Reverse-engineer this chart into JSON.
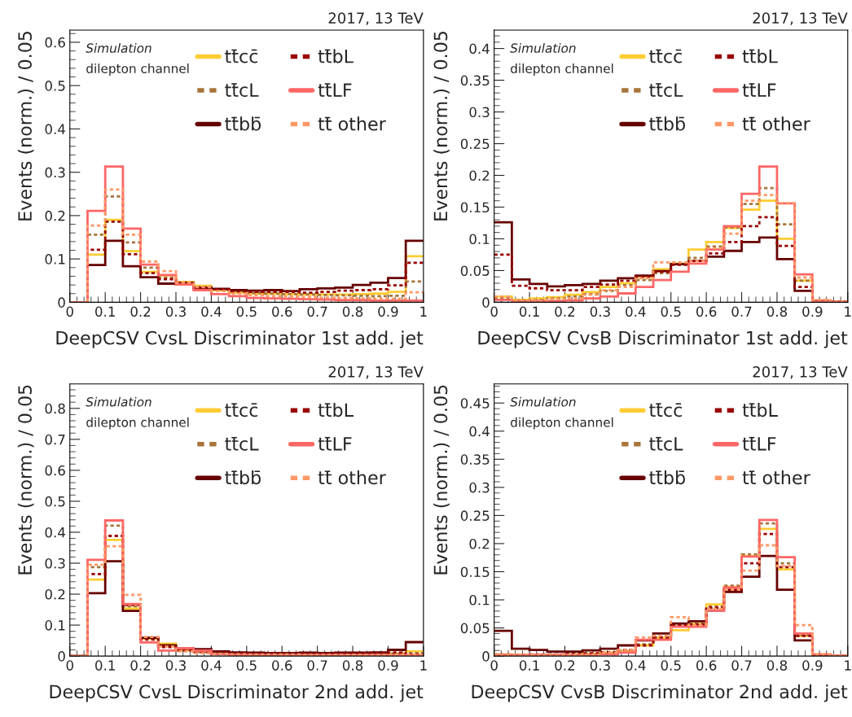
{
  "chart_data": [
    {
      "type": "histogram",
      "title": "2017, 13 TeV",
      "xlabel": "DeepCSV CvsL Discriminator 1st add. jet",
      "ylabel": "Events (norm.) / 0.05",
      "annotations": [
        "Simulation",
        "dilepton channel"
      ],
      "bins": [
        0,
        0.05,
        0.1,
        0.15,
        0.2,
        0.25,
        0.3,
        0.35,
        0.4,
        0.45,
        0.5,
        0.55,
        0.6,
        0.65,
        0.7,
        0.75,
        0.8,
        0.85,
        0.9,
        0.95,
        1
      ],
      "xlim": [
        0,
        1
      ],
      "xticks": [
        0,
        0.1,
        0.2,
        0.3,
        0.4,
        0.5,
        0.6,
        0.7,
        0.8,
        0.9,
        1
      ],
      "ylim": [
        0,
        0.628
      ],
      "yticks": [
        0,
        0.1,
        0.2,
        0.3,
        0.4,
        0.5,
        0.6
      ],
      "legend": "top right",
      "grid": false,
      "series": [
        {
          "name": "tt̄cc̄",
          "color": "#ffcc33",
          "line_style": "solid",
          "values": [
            0,
            0.11,
            0.19,
            0.118,
            0.07,
            0.062,
            0.047,
            0.038,
            0.028,
            0.022,
            0.02,
            0.02,
            0.019,
            0.018,
            0.018,
            0.018,
            0.019,
            0.02,
            0.024,
            0.106
          ]
        },
        {
          "name": "tt̄cL",
          "color": "#a8743a",
          "line_style": "dotted",
          "values": [
            0,
            0.156,
            0.244,
            0.138,
            0.08,
            0.057,
            0.046,
            0.035,
            0.03,
            0.025,
            0.021,
            0.02,
            0.019,
            0.018,
            0.017,
            0.016,
            0.015,
            0.014,
            0.015,
            0.048
          ]
        },
        {
          "name": "tt̄bb̄",
          "color": "#660000",
          "line_style": "solid",
          "values": [
            0,
            0.086,
            0.142,
            0.083,
            0.058,
            0.043,
            0.041,
            0.033,
            0.031,
            0.028,
            0.027,
            0.028,
            0.026,
            0.03,
            0.032,
            0.034,
            0.04,
            0.045,
            0.056,
            0.142
          ]
        },
        {
          "name": "tt̄bL",
          "color": "#990000",
          "line_style": "dotted",
          "values": [
            0,
            0.121,
            0.186,
            0.111,
            0.067,
            0.053,
            0.044,
            0.033,
            0.03,
            0.025,
            0.024,
            0.024,
            0.024,
            0.022,
            0.024,
            0.027,
            0.028,
            0.03,
            0.039,
            0.091
          ]
        },
        {
          "name": "tt̄LF",
          "color": "#ff6666",
          "line_style": "solid",
          "values": [
            0,
            0.211,
            0.313,
            0.17,
            0.087,
            0.063,
            0.041,
            0.028,
            0.019,
            0.014,
            0.01,
            0.009,
            0.008,
            0.007,
            0.006,
            0.005,
            0.005,
            0.004,
            0.004,
            0.004
          ]
        },
        {
          "name": "tt̄ other",
          "color": "#ff9966",
          "line_style": "dotted",
          "values": [
            0,
            0.177,
            0.26,
            0.156,
            0.094,
            0.072,
            0.045,
            0.035,
            0.026,
            0.02,
            0.016,
            0.014,
            0.013,
            0.012,
            0.011,
            0.01,
            0.009,
            0.008,
            0.008,
            0.023
          ]
        }
      ]
    },
    {
      "type": "histogram",
      "title": "2017, 13 TeV",
      "xlabel": "DeepCSV CvsB Discriminator 1st add. jet",
      "ylabel": "Events (norm.) / 0.05",
      "annotations": [
        "Simulation",
        "dilepton channel"
      ],
      "bins": [
        0,
        0.05,
        0.1,
        0.15,
        0.2,
        0.25,
        0.3,
        0.35,
        0.4,
        0.45,
        0.5,
        0.55,
        0.6,
        0.65,
        0.7,
        0.75,
        0.8,
        0.85,
        0.9,
        0.95,
        1
      ],
      "xlim": [
        0,
        1
      ],
      "xticks": [
        0,
        0.1,
        0.2,
        0.3,
        0.4,
        0.5,
        0.6,
        0.7,
        0.8,
        0.9,
        1
      ],
      "ylim": [
        0,
        0.429
      ],
      "yticks": [
        0,
        0.05,
        0.1,
        0.15,
        0.2,
        0.25,
        0.3,
        0.35,
        0.4
      ],
      "legend": "top right",
      "grid": false,
      "series": [
        {
          "name": "tt̄cc̄",
          "color": "#ffcc33",
          "line_style": "solid",
          "values": [
            0.009,
            0.004,
            0.006,
            0.008,
            0.012,
            0.016,
            0.024,
            0.03,
            0.04,
            0.052,
            0.061,
            0.083,
            0.095,
            0.117,
            0.146,
            0.16,
            0.1,
            0.034,
            0.002,
            0.001
          ]
        },
        {
          "name": "tt̄cL",
          "color": "#a8743a",
          "line_style": "dotted",
          "values": [
            0.007,
            0.003,
            0.004,
            0.006,
            0.009,
            0.013,
            0.018,
            0.027,
            0.035,
            0.046,
            0.06,
            0.07,
            0.088,
            0.118,
            0.155,
            0.18,
            0.123,
            0.034,
            0.002,
            0.001
          ]
        },
        {
          "name": "tt̄bb̄",
          "color": "#660000",
          "line_style": "solid",
          "values": [
            0.126,
            0.036,
            0.029,
            0.025,
            0.027,
            0.029,
            0.034,
            0.038,
            0.042,
            0.049,
            0.06,
            0.065,
            0.072,
            0.081,
            0.095,
            0.102,
            0.068,
            0.018,
            0.002,
            0.001
          ]
        },
        {
          "name": "tt̄bL",
          "color": "#990000",
          "line_style": "dotted",
          "values": [
            0.075,
            0.026,
            0.022,
            0.019,
            0.019,
            0.024,
            0.028,
            0.034,
            0.04,
            0.048,
            0.059,
            0.065,
            0.077,
            0.095,
            0.12,
            0.134,
            0.089,
            0.024,
            0.002,
            0.001
          ]
        },
        {
          "name": "tt̄LF",
          "color": "#ff6666",
          "line_style": "solid",
          "values": [
            0.004,
            0.001,
            0.002,
            0.002,
            0.003,
            0.006,
            0.009,
            0.014,
            0.024,
            0.035,
            0.048,
            0.061,
            0.083,
            0.12,
            0.171,
            0.214,
            0.156,
            0.044,
            0.002,
            0.001
          ]
        },
        {
          "name": "tt̄ other",
          "color": "#ff9966",
          "line_style": "dotted",
          "values": [
            0.009,
            0.003,
            0.003,
            0.005,
            0.006,
            0.012,
            0.019,
            0.024,
            0.038,
            0.063,
            0.063,
            0.065,
            0.085,
            0.108,
            0.16,
            0.169,
            0.156,
            0.039,
            0.004,
            0.001
          ]
        }
      ]
    },
    {
      "type": "histogram",
      "title": "2017, 13 TeV",
      "xlabel": "DeepCSV CvsL Discriminator 2nd add. jet",
      "ylabel": "Events (norm.) / 0.05",
      "annotations": [
        "Simulation",
        "dilepton channel"
      ],
      "bins": [
        0,
        0.05,
        0.1,
        0.15,
        0.2,
        0.25,
        0.3,
        0.35,
        0.4,
        0.45,
        0.5,
        0.55,
        0.6,
        0.65,
        0.7,
        0.75,
        0.8,
        0.85,
        0.9,
        0.95,
        1
      ],
      "xlim": [
        0,
        1
      ],
      "xticks": [
        0,
        0.1,
        0.2,
        0.3,
        0.4,
        0.5,
        0.6,
        0.7,
        0.8,
        0.9,
        1
      ],
      "ylim": [
        0,
        0.879
      ],
      "yticks": [
        0,
        0.1,
        0.2,
        0.3,
        0.4,
        0.5,
        0.6,
        0.7,
        0.8
      ],
      "legend": "top right",
      "grid": false,
      "series": [
        {
          "name": "tt̄cc̄",
          "color": "#ffcc33",
          "line_style": "solid",
          "values": [
            0,
            0.247,
            0.375,
            0.154,
            0.056,
            0.04,
            0.019,
            0.015,
            0.011,
            0.009,
            0.008,
            0.007,
            0.007,
            0.007,
            0.007,
            0.007,
            0.007,
            0.007,
            0.008,
            0.015
          ]
        },
        {
          "name": "tt̄cL",
          "color": "#a8743a",
          "line_style": "dotted",
          "values": [
            0,
            0.287,
            0.421,
            0.161,
            0.057,
            0.033,
            0.02,
            0.013,
            0.011,
            0.009,
            0.008,
            0.008,
            0.007,
            0.007,
            0.007,
            0.007,
            0.007,
            0.007,
            0.008,
            0.01
          ]
        },
        {
          "name": "tt̄bb̄",
          "color": "#660000",
          "line_style": "solid",
          "values": [
            0,
            0.203,
            0.306,
            0.146,
            0.059,
            0.035,
            0.024,
            0.022,
            0.015,
            0.012,
            0.011,
            0.01,
            0.01,
            0.011,
            0.01,
            0.011,
            0.011,
            0.012,
            0.02,
            0.045
          ]
        },
        {
          "name": "tt̄bL",
          "color": "#990000",
          "line_style": "dotted",
          "values": [
            0,
            0.265,
            0.388,
            0.165,
            0.053,
            0.029,
            0.018,
            0.013,
            0.011,
            0.009,
            0.008,
            0.008,
            0.008,
            0.008,
            0.008,
            0.008,
            0.009,
            0.009,
            0.011,
            0.005
          ]
        },
        {
          "name": "tt̄LF",
          "color": "#ff6666",
          "line_style": "solid",
          "values": [
            0,
            0.311,
            0.438,
            0.168,
            0.044,
            0.018,
            0.025,
            0.018,
            0.006,
            0.004,
            0.003,
            0.003,
            0.003,
            0.003,
            0.003,
            0.003,
            0.003,
            0.003,
            0.003,
            0.003
          ]
        },
        {
          "name": "tt̄ other",
          "color": "#ff9966",
          "line_style": "dotted",
          "values": [
            0,
            0.295,
            0.355,
            0.198,
            0.062,
            0.031,
            0.015,
            0.009,
            0.007,
            0.006,
            0.005,
            0.005,
            0.005,
            0.004,
            0.004,
            0.004,
            0.004,
            0.004,
            0.004,
            0.004
          ]
        }
      ]
    },
    {
      "type": "histogram",
      "title": "2017, 13 TeV",
      "xlabel": "DeepCSV CvsB Discriminator 2nd add. jet",
      "ylabel": "Events (norm.) / 0.05",
      "annotations": [
        "Simulation",
        "dilepton channel"
      ],
      "bins": [
        0,
        0.05,
        0.1,
        0.15,
        0.2,
        0.25,
        0.3,
        0.35,
        0.4,
        0.45,
        0.5,
        0.55,
        0.6,
        0.65,
        0.7,
        0.75,
        0.8,
        0.85,
        0.9,
        0.95,
        1
      ],
      "xlim": [
        0,
        1
      ],
      "xticks": [
        0,
        0.1,
        0.2,
        0.3,
        0.4,
        0.5,
        0.6,
        0.7,
        0.8,
        0.9,
        1
      ],
      "ylim": [
        0,
        0.484
      ],
      "yticks": [
        0,
        0.05,
        0.1,
        0.15,
        0.2,
        0.25,
        0.3,
        0.35,
        0.4,
        0.45
      ],
      "legend": "top right",
      "grid": false,
      "series": [
        {
          "name": "tt̄cc̄",
          "color": "#ffcc33",
          "line_style": "solid",
          "values": [
            0.003,
            0.002,
            0.002,
            0.002,
            0.003,
            0.004,
            0.006,
            0.008,
            0.019,
            0.032,
            0.046,
            0.057,
            0.092,
            0.123,
            0.178,
            0.226,
            0.154,
            0.036,
            0.003,
            0.001
          ]
        },
        {
          "name": "tt̄cL",
          "color": "#a8743a",
          "line_style": "dotted",
          "values": [
            0.002,
            0.002,
            0.002,
            0.002,
            0.002,
            0.004,
            0.005,
            0.01,
            0.021,
            0.034,
            0.054,
            0.058,
            0.088,
            0.125,
            0.181,
            0.236,
            0.165,
            0.037,
            0.003,
            0.001
          ]
        },
        {
          "name": "tt̄bb̄",
          "color": "#660000",
          "line_style": "solid",
          "values": [
            0.045,
            0.013,
            0.011,
            0.008,
            0.008,
            0.01,
            0.013,
            0.019,
            0.028,
            0.04,
            0.058,
            0.062,
            0.081,
            0.114,
            0.141,
            0.178,
            0.118,
            0.028,
            0.002,
            0.001
          ]
        },
        {
          "name": "tt̄bL",
          "color": "#990000",
          "line_style": "dotted",
          "values": [
            0.003,
            0.002,
            0.003,
            0.003,
            0.004,
            0.005,
            0.007,
            0.011,
            0.019,
            0.033,
            0.055,
            0.056,
            0.086,
            0.118,
            0.165,
            0.217,
            0.158,
            0.036,
            0.002,
            0.001
          ]
        },
        {
          "name": "tt̄LF",
          "color": "#ff6666",
          "line_style": "solid",
          "values": [
            0.002,
            0.002,
            0.002,
            0.002,
            0.002,
            0.002,
            0.003,
            0.006,
            0.029,
            0.029,
            0.052,
            0.052,
            0.081,
            0.122,
            0.177,
            0.242,
            0.176,
            0.04,
            0.003,
            0.001
          ]
        },
        {
          "name": "tt̄ other",
          "color": "#ff9966",
          "line_style": "dotted",
          "values": [
            0.002,
            0.002,
            0.002,
            0.002,
            0.002,
            0.003,
            0.006,
            0.011,
            0.033,
            0.036,
            0.069,
            0.055,
            0.084,
            0.118,
            0.152,
            0.197,
            0.16,
            0.055,
            0.003,
            0.001
          ]
        }
      ]
    }
  ]
}
